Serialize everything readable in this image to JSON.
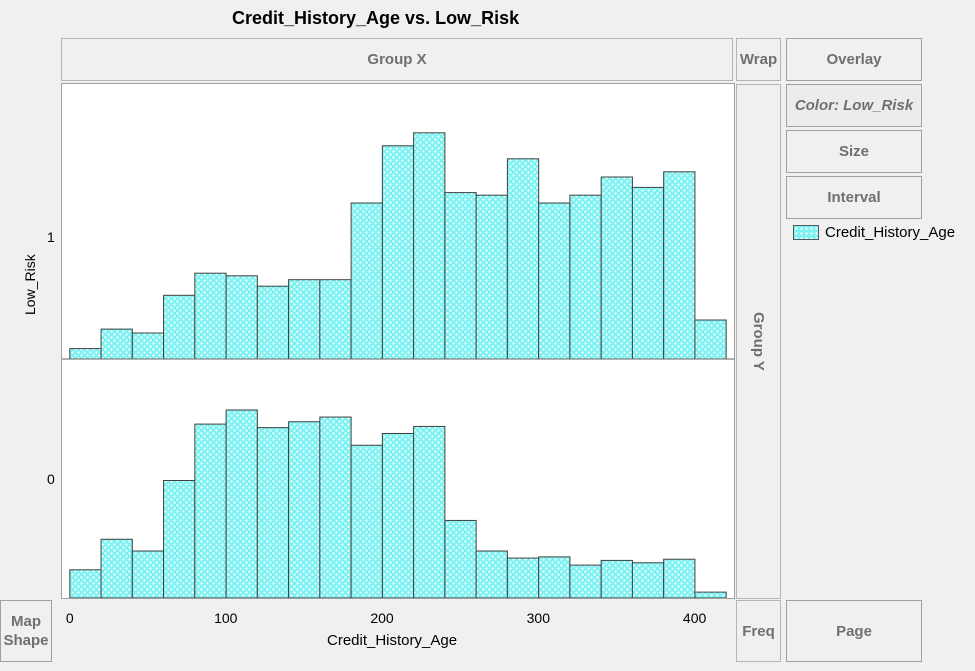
{
  "title": "Credit_History_Age vs. Low_Risk",
  "zones": {
    "group_x": "Group X",
    "wrap": "Wrap",
    "overlay": "Overlay",
    "color": "Color: Low_Risk",
    "size": "Size",
    "interval": "Interval",
    "group_y": "Group Y",
    "freq": "Freq",
    "page": "Page",
    "map_shape_line1": "Map",
    "map_shape_line2": "Shape"
  },
  "colors": {
    "bar_fill": "#7df2f2",
    "bar_dots": "#ffffff",
    "bar_edge": "#404040"
  },
  "chart_data": {
    "type": "bar",
    "title": "Credit_History_Age vs. Low_Risk",
    "xlabel": "Credit_History_Age",
    "ylabel": "Low_Risk",
    "x_ticks": [
      0,
      100,
      200,
      300,
      400
    ],
    "xlim": [
      -5,
      425
    ],
    "bin_width": 20,
    "bin_starts": [
      0,
      20,
      40,
      60,
      80,
      100,
      120,
      140,
      160,
      180,
      200,
      220,
      240,
      260,
      280,
      300,
      320,
      340,
      360,
      380,
      400
    ],
    "panels": [
      {
        "label": "1",
        "values": [
          0.04,
          0.115,
          0.1,
          0.245,
          0.33,
          0.32,
          0.28,
          0.305,
          0.305,
          0.6,
          0.82,
          0.87,
          0.64,
          0.63,
          0.77,
          0.6,
          0.63,
          0.7,
          0.66,
          0.72,
          0.15
        ]
      },
      {
        "label": "0",
        "values": [
          0.12,
          0.25,
          0.2,
          0.5,
          0.74,
          0.8,
          0.725,
          0.75,
          0.77,
          0.65,
          0.7,
          0.73,
          0.33,
          0.2,
          0.17,
          0.175,
          0.14,
          0.16,
          0.15,
          0.165,
          0.025
        ]
      }
    ],
    "legend": {
      "entries": [
        "Credit_History_Age"
      ],
      "placement": "right"
    },
    "grid": false
  }
}
